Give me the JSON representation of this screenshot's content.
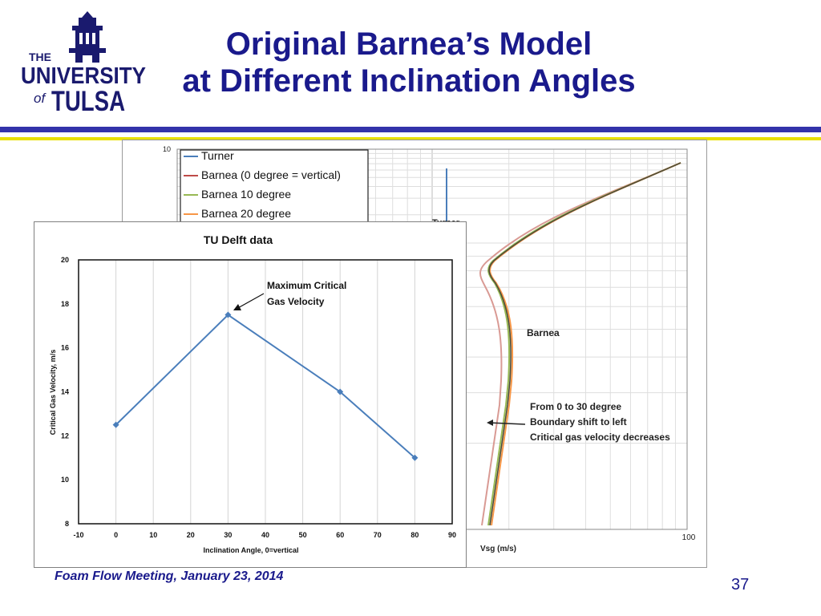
{
  "logo": {
    "line1": "THE",
    "line2": "UNIVERSITY",
    "line3": "of",
    "line4": "TULSA"
  },
  "title": {
    "line1": "Original Barnea’s Model",
    "line2": "at Different Inclination Angles"
  },
  "colors": {
    "title": "#1a1a8c",
    "rule_blue": "#3333aa",
    "rule_yellow": "#e8e000"
  },
  "chart_data": [
    {
      "type": "line",
      "title": "",
      "xlabel": "Vsg (m/s)",
      "ylabel": "",
      "visible_ticks": {
        "x_right": "100",
        "y_top": "10"
      },
      "legend": {
        "placement": "top-left",
        "entries": [
          {
            "name": "Turner",
            "color": "#4a7ebb"
          },
          {
            "name": "Barnea (0 degree = vertical)",
            "color": "#be4b48"
          },
          {
            "name": "Barnea 10 degree",
            "color": "#98b954"
          },
          {
            "name": "Barnea 20 degree",
            "color": "#f79646"
          }
        ]
      },
      "annotations": {
        "turner": "Turner",
        "barnea": "Barnea",
        "shift": [
          "From 0 to 30 degree",
          "Boundary shift to left",
          "Critical gas velocity decreases"
        ]
      },
      "grid": true
    },
    {
      "type": "line",
      "title": "TU Delft data",
      "xlabel": "Inclination Angle, 0=vertical",
      "ylabel": "Critical Gas Velocity, m/s",
      "xlim": [
        -10,
        90
      ],
      "ylim": [
        8,
        20
      ],
      "x_ticks": [
        -10,
        0,
        10,
        20,
        30,
        40,
        50,
        60,
        70,
        80,
        90
      ],
      "y_ticks": [
        8,
        10,
        12,
        14,
        16,
        18,
        20
      ],
      "grid": true,
      "series": [
        {
          "color": "#4a7ebb",
          "x": [
            0,
            30,
            60,
            80
          ],
          "y": [
            12.5,
            17.5,
            14,
            11
          ]
        }
      ],
      "annotation": {
        "line1": "Maximum Critical",
        "line2": "Gas Velocity"
      }
    }
  ],
  "footer": "Foam Flow Meeting, January 23, 2014",
  "page_number": "37"
}
